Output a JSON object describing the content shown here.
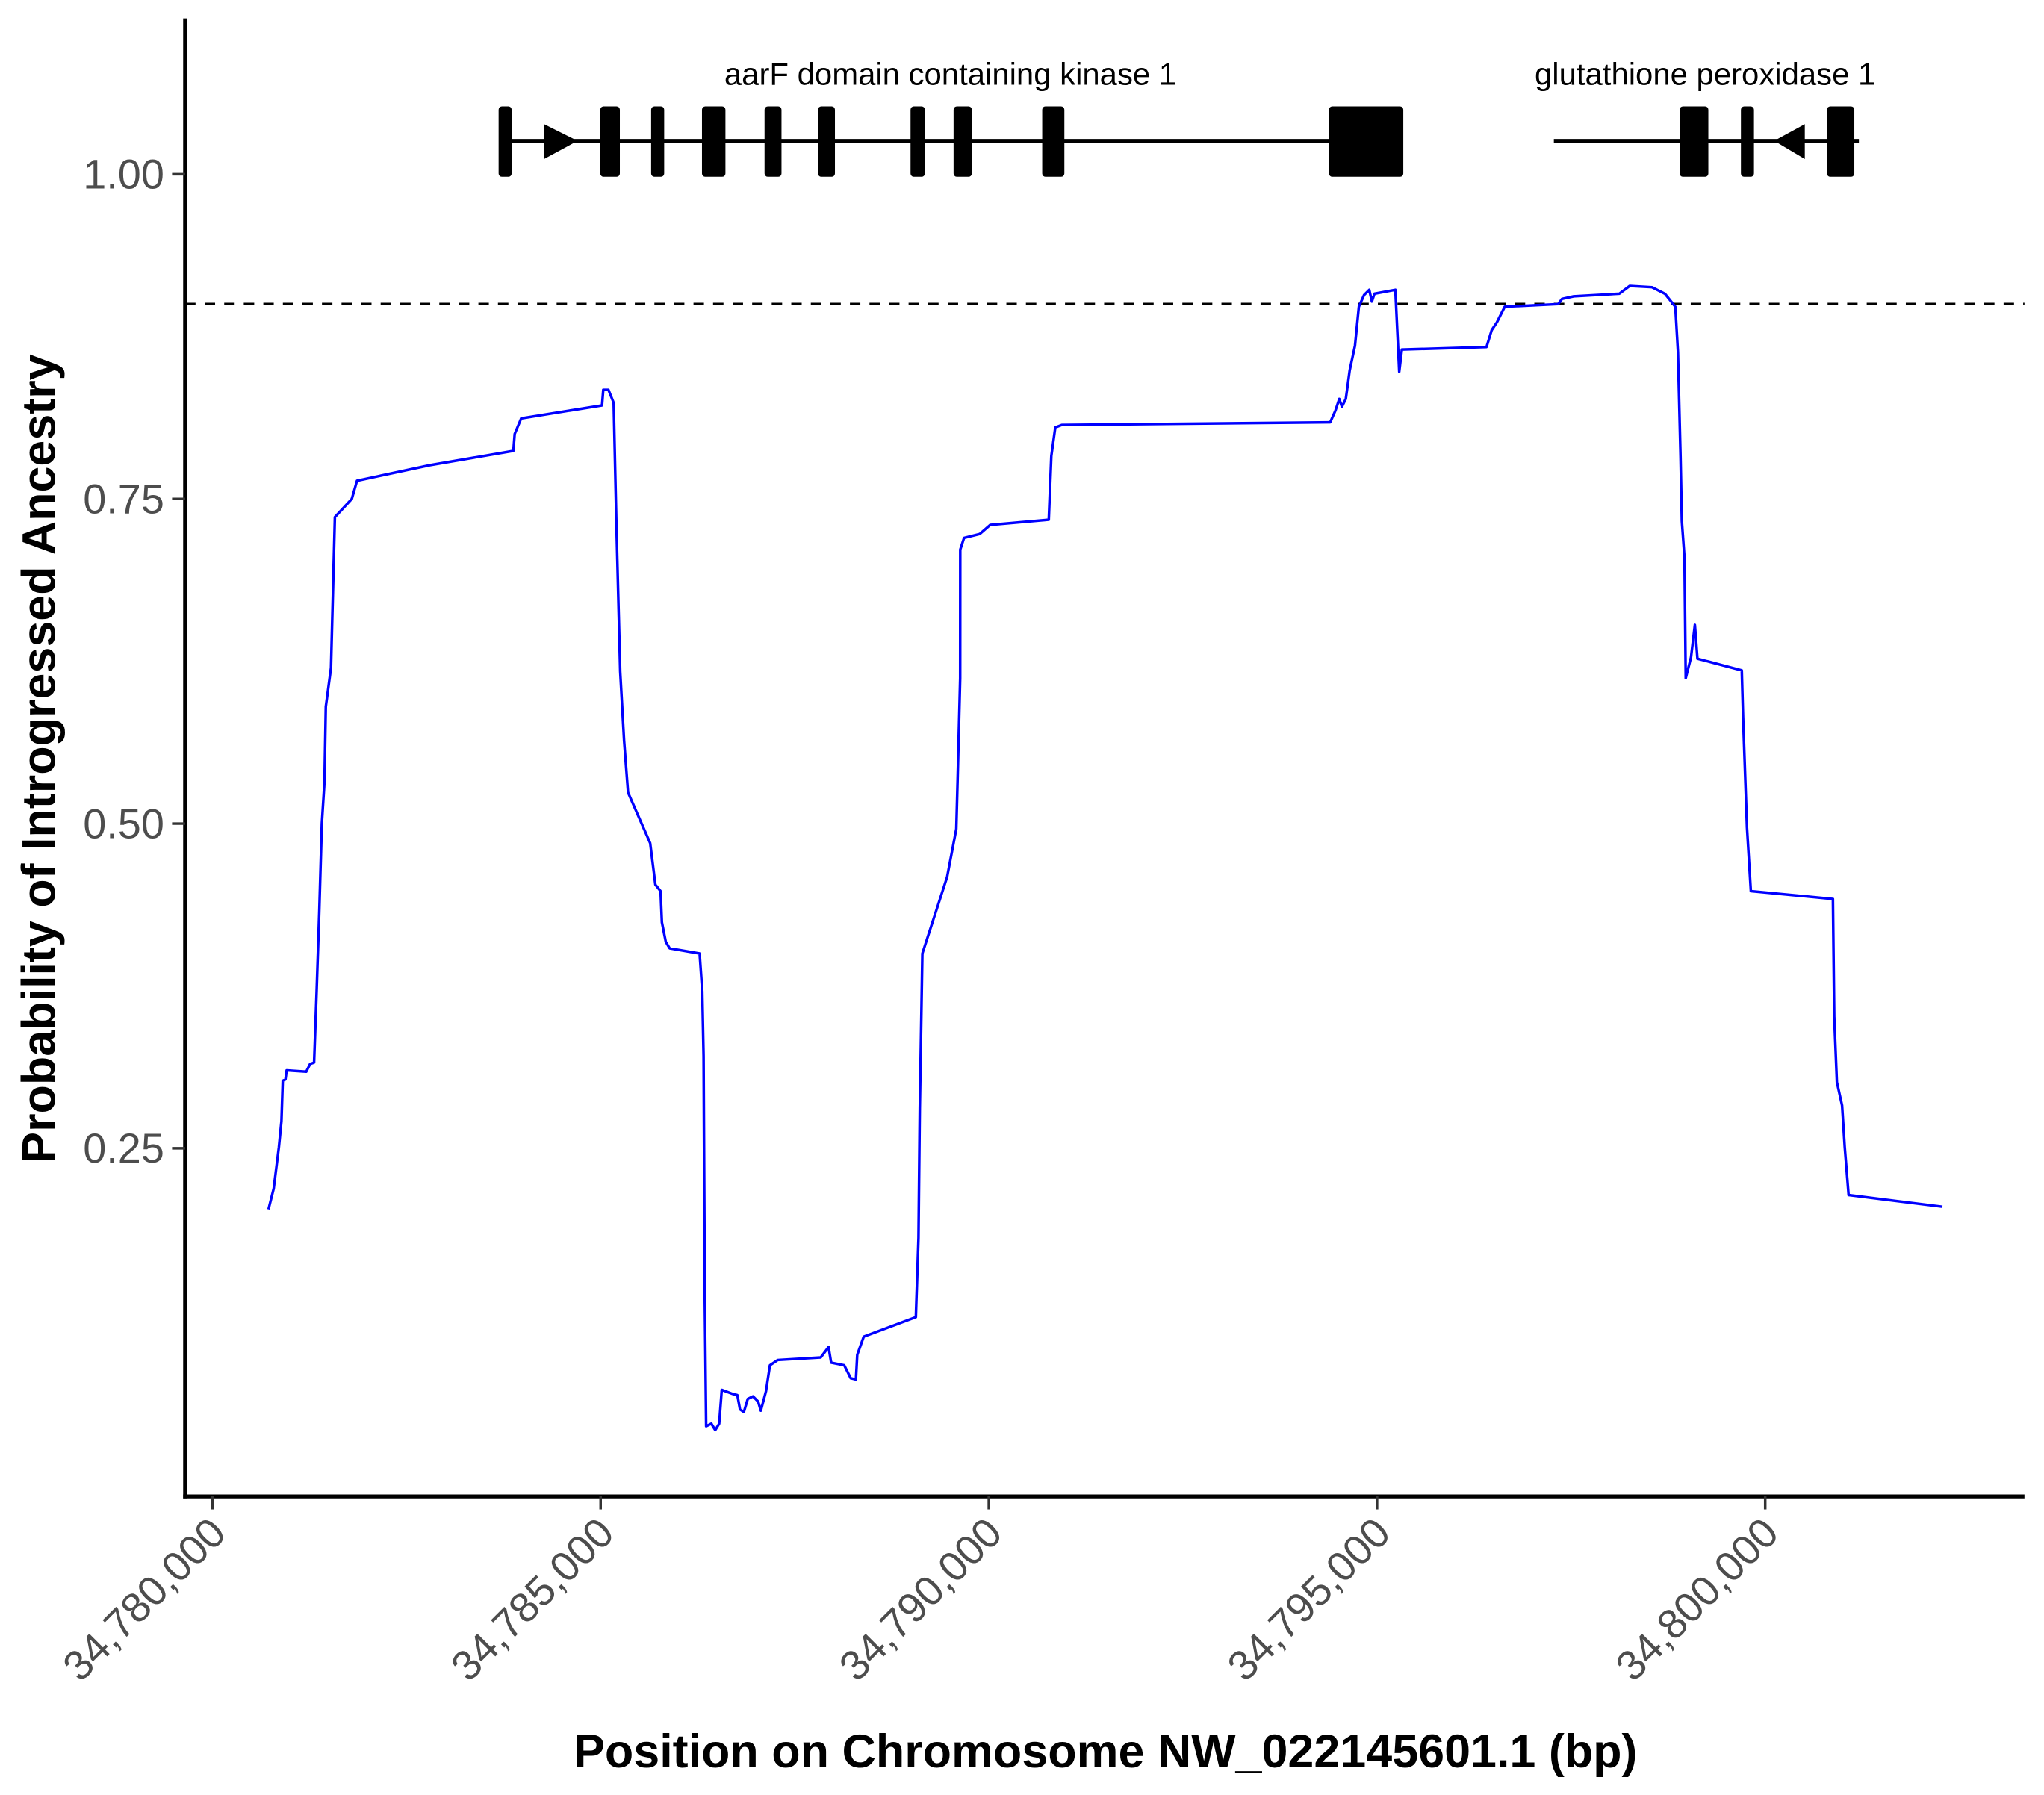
{
  "chart_data": {
    "type": "line",
    "x_label": "Position on Chromosome NW_022145601.1 (bp)",
    "y_label": "Probability of Introgressed Ancestry",
    "color": "#0000ff",
    "reference_line": {
      "y": 0.9,
      "style": "dashed"
    },
    "annotations": [
      {
        "text": "aarF domain containing kinase 1"
      },
      {
        "text": "glutathione peroxidase 1"
      }
    ],
    "xlim": [
      34779648,
      34803339
    ],
    "ylim": [
      -0.018,
      1.12
    ],
    "xticks": [
      {
        "value": 34780000,
        "label": "34,780,000"
      },
      {
        "value": 34785000,
        "label": "34,785,000"
      },
      {
        "value": 34790000,
        "label": "34,790,000"
      },
      {
        "value": 34795000,
        "label": "34,795,000"
      },
      {
        "value": 34800000,
        "label": "34,800,000"
      }
    ],
    "yticks": [
      {
        "value": 0.25,
        "label": "0.25"
      },
      {
        "value": 0.5,
        "label": "0.50"
      },
      {
        "value": 0.75,
        "label": "0.75"
      },
      {
        "value": 1,
        "label": "1.00"
      }
    ],
    "x": [
      34780722,
      34780789,
      34780856,
      34780889,
      34780906,
      34780940,
      34780956,
      34781208,
      34781258,
      34781309,
      34781342,
      34781376,
      34781409,
      34781443,
      34781460,
      34781527,
      34781577,
      34781795,
      34781862,
      34782802,
      34783876,
      34783893,
      34783977,
      34785018,
      34785034,
      34785101,
      34785168,
      34785202,
      34785252,
      34785302,
      34785353,
      34785638,
      34785705,
      34785772,
      34785789,
      34785839,
      34785889,
      34786275,
      34786309,
      34786326,
      34786342,
      34786359,
      34786426,
      34786476,
      34786527,
      34786560,
      34786694,
      34786761,
      34786795,
      34786845,
      34786895,
      34786962,
      34787029,
      34787063,
      34787130,
      34787181,
      34787281,
      34787835,
      34787936,
      34787969,
      34788137,
      34788221,
      34788288,
      34788305,
      34788389,
      34789060,
      34789094,
      34789111,
      34789144,
      34789463,
      34789581,
      34789597,
      34789631,
      34789632,
      34789681,
      34789883,
      34790017,
      34790772,
      34790805,
      34790856,
      34790940,
      34794397,
      34794464,
      34794514,
      34794548,
      34794598,
      34794648,
      34794716,
      34794766,
      34794833,
      34794900,
      34794934,
      34794967,
      34795236,
      34795286,
      34795320,
      34796410,
      34796477,
      34796544,
      34796645,
      34797333,
      34797383,
      34797534,
      34798121,
      34798255,
      34798541,
      34798708,
      34798842,
      34798876,
      34798909,
      34798926,
      34798960,
      34798976,
      34799044,
      34799094,
      34799127,
      34799698,
      34799715,
      34799765,
      34799815,
      34800872,
      34800889,
      34800923,
      34800990,
      34801024,
      34801074,
      34802282
    ],
    "values": [
      0.203,
      0.219,
      0.251,
      0.271,
      0.302,
      0.303,
      0.31,
      0.309,
      0.315,
      0.316,
      0.371,
      0.432,
      0.5,
      0.532,
      0.59,
      0.62,
      0.736,
      0.75,
      0.764,
      0.776,
      0.787,
      0.8,
      0.812,
      0.822,
      0.834,
      0.834,
      0.824,
      0.733,
      0.617,
      0.564,
      0.524,
      0.485,
      0.453,
      0.448,
      0.424,
      0.409,
      0.404,
      0.4,
      0.371,
      0.321,
      0.131,
      0.036,
      0.038,
      0.033,
      0.038,
      0.064,
      0.061,
      0.06,
      0.049,
      0.047,
      0.057,
      0.059,
      0.055,
      0.048,
      0.063,
      0.083,
      0.087,
      0.089,
      0.097,
      0.085,
      0.083,
      0.073,
      0.072,
      0.091,
      0.105,
      0.12,
      0.181,
      0.281,
      0.4,
      0.459,
      0.496,
      0.532,
      0.612,
      0.711,
      0.72,
      0.723,
      0.73,
      0.734,
      0.783,
      0.805,
      0.807,
      0.809,
      0.818,
      0.827,
      0.821,
      0.827,
      0.849,
      0.868,
      0.898,
      0.907,
      0.911,
      0.902,
      0.908,
      0.911,
      0.848,
      0.865,
      0.867,
      0.88,
      0.886,
      0.898,
      0.9,
      0.904,
      0.906,
      0.908,
      0.914,
      0.913,
      0.908,
      0.898,
      0.863,
      0.783,
      0.733,
      0.705,
      0.612,
      0.628,
      0.653,
      0.627,
      0.618,
      0.582,
      0.497,
      0.448,
      0.442,
      0.351,
      0.301,
      0.283,
      0.251,
      0.214,
      0.205
    ]
  }
}
